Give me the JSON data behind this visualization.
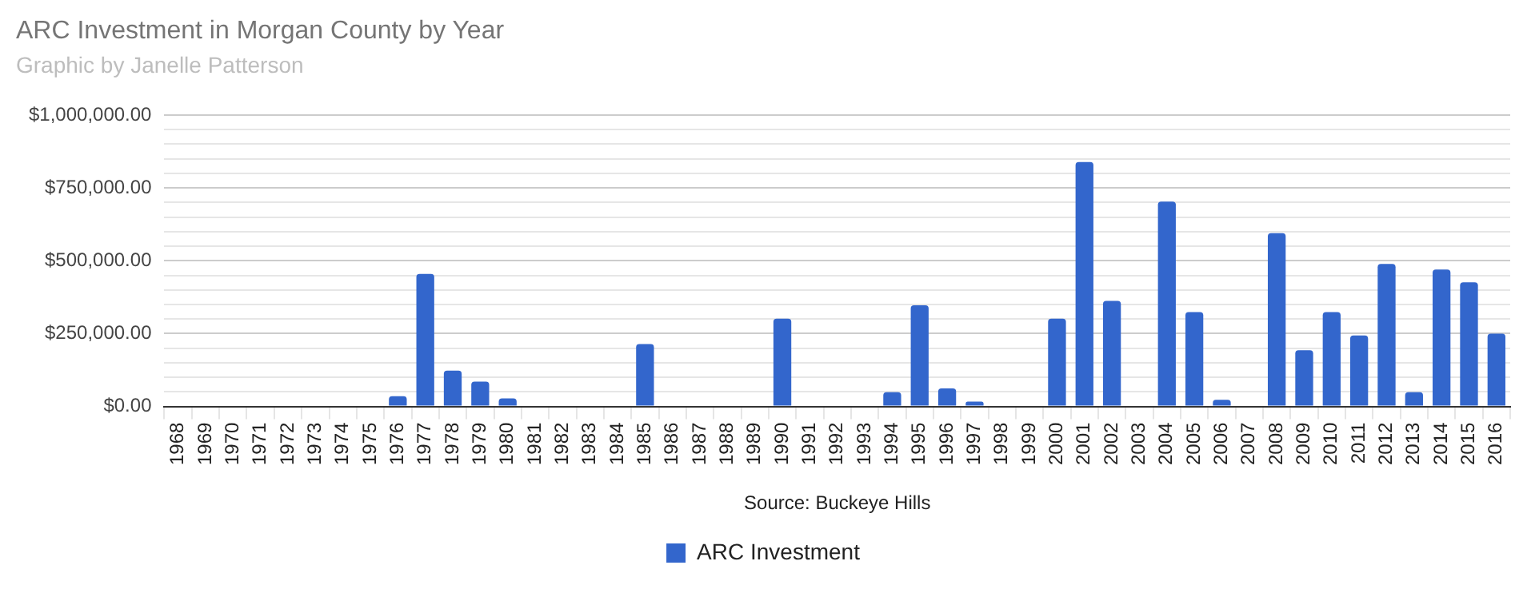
{
  "chart_data": {
    "type": "bar",
    "title": "ARC Investment in Morgan County by Year",
    "subtitle": "Graphic by Janelle Patterson",
    "categories": [
      "1968",
      "1969",
      "1970",
      "1971",
      "1972",
      "1973",
      "1974",
      "1975",
      "1976",
      "1977",
      "1978",
      "1979",
      "1980",
      "1981",
      "1982",
      "1983",
      "1984",
      "1985",
      "1986",
      "1987",
      "1988",
      "1989",
      "1990",
      "1991",
      "1992",
      "1993",
      "1994",
      "1995",
      "1996",
      "1997",
      "1998",
      "1999",
      "2000",
      "2001",
      "2002",
      "2003",
      "2004",
      "2005",
      "2006",
      "2007",
      "2008",
      "2009",
      "2010",
      "2011",
      "2012",
      "2013",
      "2014",
      "2015",
      "2016"
    ],
    "series": [
      {
        "name": "ARC Investment",
        "color": "#3366cc",
        "values": [
          0,
          0,
          0,
          0,
          0,
          0,
          0,
          0,
          35000,
          455000,
          123000,
          85000,
          28000,
          0,
          0,
          0,
          0,
          214000,
          0,
          0,
          0,
          0,
          301000,
          0,
          0,
          0,
          49000,
          347000,
          62000,
          17000,
          0,
          0,
          301000,
          839000,
          362000,
          0,
          703000,
          324000,
          23000,
          0,
          595000,
          193000,
          324000,
          244000,
          489000,
          49000,
          470000,
          426000,
          250000
        ]
      }
    ],
    "ylim": [
      0,
      1000000
    ],
    "yticks": [
      {
        "value": 0,
        "label": "$0.00"
      },
      {
        "value": 50000,
        "label": null
      },
      {
        "value": 100000,
        "label": null
      },
      {
        "value": 150000,
        "label": null
      },
      {
        "value": 200000,
        "label": null
      },
      {
        "value": 250000,
        "label": "$250,000.00"
      },
      {
        "value": 300000,
        "label": null
      },
      {
        "value": 350000,
        "label": null
      },
      {
        "value": 400000,
        "label": null
      },
      {
        "value": 450000,
        "label": null
      },
      {
        "value": 500000,
        "label": "$500,000.00"
      },
      {
        "value": 550000,
        "label": null
      },
      {
        "value": 600000,
        "label": null
      },
      {
        "value": 650000,
        "label": null
      },
      {
        "value": 700000,
        "label": null
      },
      {
        "value": 750000,
        "label": "$750,000.00"
      },
      {
        "value": 800000,
        "label": null
      },
      {
        "value": 850000,
        "label": null
      },
      {
        "value": 900000,
        "label": null
      },
      {
        "value": 950000,
        "label": null
      },
      {
        "value": 1000000,
        "label": "$1,000,000.00"
      }
    ],
    "grid": true,
    "legend": "bottom",
    "annotations": [
      "Source: Buckeye Hills"
    ]
  }
}
